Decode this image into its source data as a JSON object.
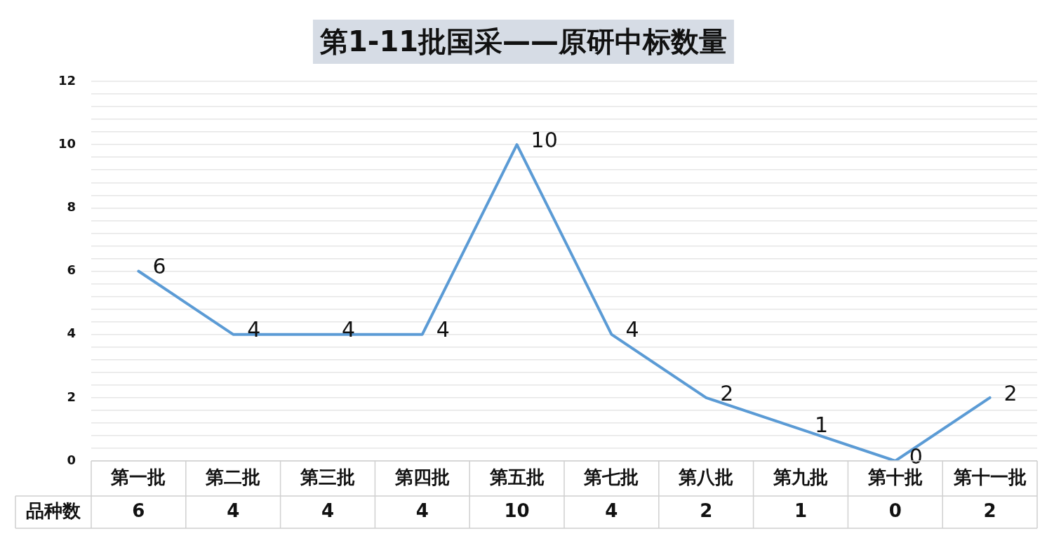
{
  "chart_data": {
    "type": "line",
    "title": "第1-11批国采——原研中标数量",
    "categories": [
      "第一批",
      "第二批",
      "第三批",
      "第四批",
      "第五批",
      "第七批",
      "第八批",
      "第九批",
      "第十批",
      "第十一批"
    ],
    "series": [
      {
        "name": "品种数",
        "color": "#5b9bd5",
        "values": [
          6,
          4,
          4,
          4,
          10,
          4,
          2,
          1,
          0,
          2
        ]
      }
    ],
    "annotations": [
      {
        "text": "6",
        "x": "第一批",
        "y": 6
      },
      {
        "text": "4",
        "x": "第二批",
        "y": 4
      },
      {
        "text": "4",
        "x": "第三批",
        "y": 4
      },
      {
        "text": "4",
        "x": "第四批",
        "y": 4
      },
      {
        "text": "10",
        "x": "第五批",
        "y": 10
      },
      {
        "text": "4",
        "x": "第七批",
        "y": 4
      },
      {
        "text": "2",
        "x": "第八批",
        "y": 2
      },
      {
        "text": "1",
        "x": "第九批",
        "y": 1
      },
      {
        "text": "0",
        "x": "第十批",
        "y": 0
      },
      {
        "text": "2",
        "x": "第十一批",
        "y": 2
      }
    ],
    "ylim": [
      0,
      12
    ],
    "yticks": [
      0,
      {
        "value": 0.4,
        "label": null
      },
      {
        "value": 0.8,
        "label": null
      },
      {
        "value": 1.2,
        "label": null
      },
      {
        "value": 1.6,
        "label": null
      },
      2,
      {
        "value": 2.4,
        "label": null
      },
      {
        "value": 2.8,
        "label": null
      },
      {
        "value": 3.2,
        "label": null
      },
      {
        "value": 3.6,
        "label": null
      },
      4,
      {
        "value": 4.4,
        "label": null
      },
      {
        "value": 4.8,
        "label": null
      },
      {
        "value": 5.2,
        "label": null
      },
      {
        "value": 5.6,
        "label": null
      },
      6,
      {
        "value": 6.4,
        "label": null
      },
      {
        "value": 6.8,
        "label": null
      },
      {
        "value": 7.2,
        "label": null
      },
      {
        "value": 7.6,
        "label": null
      },
      8,
      {
        "value": 8.4,
        "label": null
      },
      {
        "value": 8.8,
        "label": null
      },
      {
        "value": 9.2,
        "label": null
      },
      {
        "value": 9.6,
        "label": null
      },
      10,
      {
        "value": 10.4,
        "label": null
      },
      {
        "value": 10.8,
        "label": null
      },
      {
        "value": 11.2,
        "label": null
      },
      {
        "value": 11.6,
        "label": null
      },
      12
    ],
    "grid": "y",
    "data_labels": true,
    "marker": "none",
    "line_style": "solid",
    "legend": false
  }
}
